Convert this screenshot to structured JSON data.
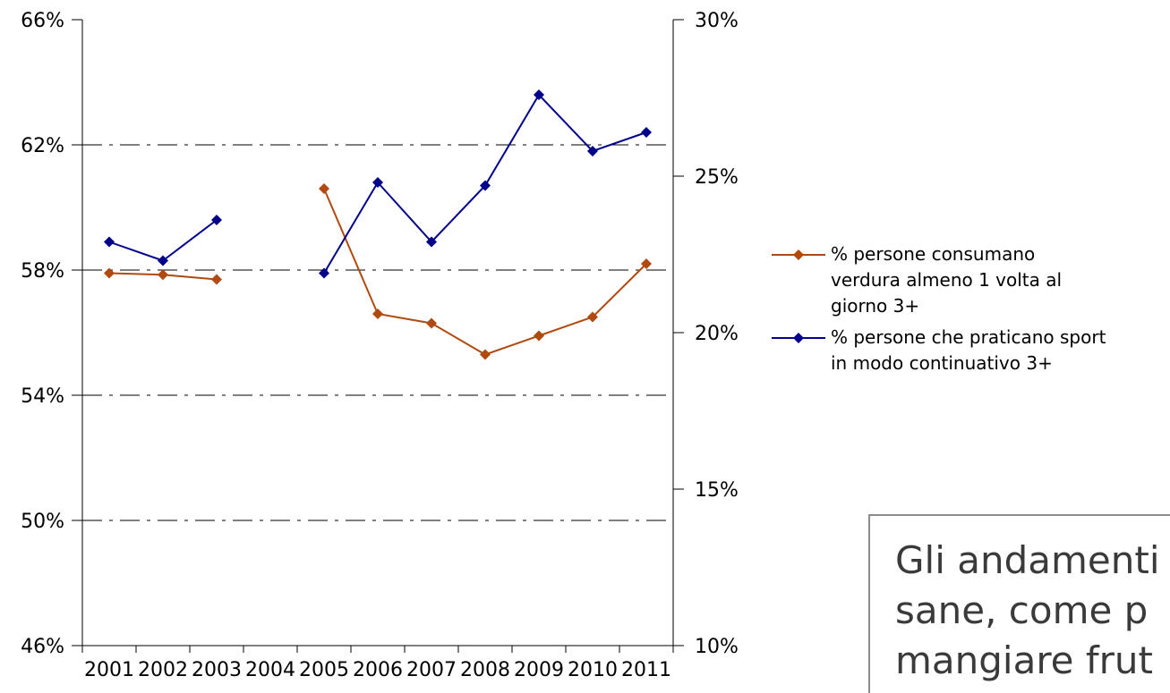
{
  "chart_data": {
    "type": "line",
    "categories": [
      "2001",
      "2002",
      "2003",
      "2004",
      "2005",
      "2006",
      "2007",
      "2008",
      "2009",
      "2010",
      "2011"
    ],
    "y_left": {
      "min": 0.46,
      "max": 0.66,
      "ticks": [
        0.46,
        0.5,
        0.54,
        0.58,
        0.62,
        0.66
      ],
      "tick_labels": [
        "46%",
        "50%",
        "54%",
        "58%",
        "62%",
        "66%"
      ]
    },
    "y_right": {
      "min": 0.1,
      "max": 0.3,
      "ticks": [
        0.1,
        0.15,
        0.2,
        0.25,
        0.3
      ],
      "tick_labels": [
        "10%",
        "15%",
        "20%",
        "25%",
        "30%"
      ]
    },
    "gridlines": "dash-dot at left-axis ticks",
    "legend_position": "right",
    "series": [
      {
        "name": "% persone consumano verdura almeno 1 volta al giorno 3+",
        "axis": "left",
        "color": "#b04a10",
        "values": [
          0.579,
          0.5785,
          0.577,
          null,
          0.606,
          0.566,
          0.563,
          0.553,
          0.559,
          0.565,
          0.582
        ]
      },
      {
        "name": "% persone che praticano sport in modo continuativo 3+",
        "axis": "right",
        "color": "#00008b",
        "values": [
          0.229,
          0.223,
          0.236,
          null,
          0.219,
          0.248,
          0.229,
          0.247,
          0.276,
          0.258,
          0.264
        ]
      }
    ]
  },
  "legend": {
    "items": [
      {
        "lines": [
          "% persone consumano",
          "verdura almeno 1 volta al",
          "giorno 3+"
        ],
        "color": "#b04a10"
      },
      {
        "lines": [
          "% persone che praticano sport",
          "in modo continuativo 3+"
        ],
        "color": "#00008b"
      }
    ]
  },
  "callout": {
    "lines": [
      "Gli andamenti",
      "sane, come p",
      "mangiare frut"
    ]
  }
}
